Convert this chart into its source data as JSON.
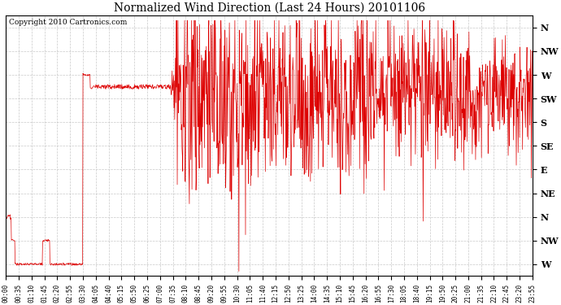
{
  "title": "Normalized Wind Direction (Last 24 Hours) 20101106",
  "copyright": "Copyright 2010 Cartronics.com",
  "line_color": "#dd0000",
  "bg_color": "#ffffff",
  "plot_bg_color": "#ffffff",
  "grid_color": "#bbbbbb",
  "ytick_labels": [
    "N",
    "NW",
    "W",
    "SW",
    "S",
    "SE",
    "E",
    "NE",
    "N",
    "NW",
    "W"
  ],
  "ytick_values": [
    10,
    9,
    8,
    7,
    6,
    5,
    4,
    3,
    2,
    1,
    0
  ],
  "ylim": [
    -0.5,
    10.5
  ],
  "xstart_minutes": 0,
  "xend_minutes": 1435,
  "xtick_interval_minutes": 35,
  "figwidth": 6.9,
  "figheight": 3.75,
  "dpi": 100
}
